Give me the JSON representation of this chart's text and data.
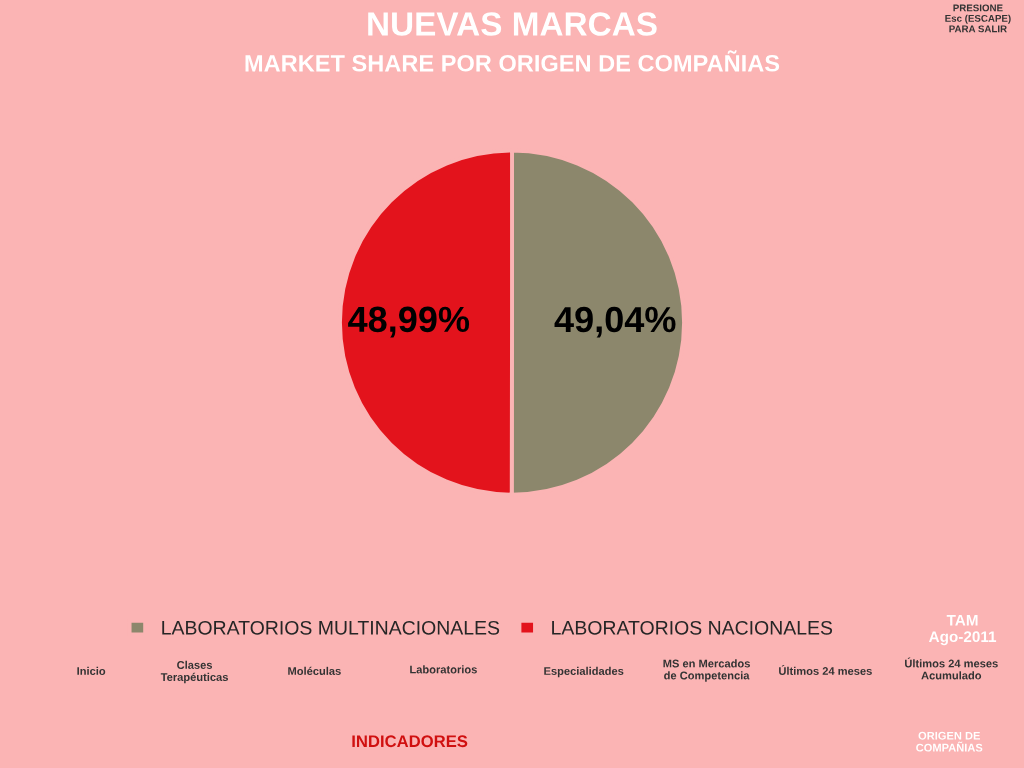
{
  "chart_data": {
    "type": "pie",
    "title": "NUEVAS MARCAS",
    "subtitle": "MARKET SHARE POR ORIGEN DE COMPAÑIAS",
    "categories": [
      "LABORATORIOS MULTINACIONALES",
      "LABORATORIOS NACIONALES"
    ],
    "values": [
      49.04,
      48.99
    ],
    "colors": [
      "#8c876c",
      "#e3131c"
    ],
    "value_labels": [
      "49,04%",
      "48,99%"
    ],
    "legend": "bottom",
    "annotations": [
      "PRESIONE\nEsc (ESCAPE)\nPARA SALIR",
      "TAM\nAgo-2011",
      "Inicio",
      "Clases\nTerapéuticas",
      "Moléculas",
      "Laboratorios",
      "Especialidades",
      "MS en Mercados\nde Competencia",
      "Últimos 24 meses",
      "Últimos 24 meses\nAcumulado",
      "INDICADORES",
      "ORIGEN DE\nCOMPAÑIAS"
    ]
  }
}
